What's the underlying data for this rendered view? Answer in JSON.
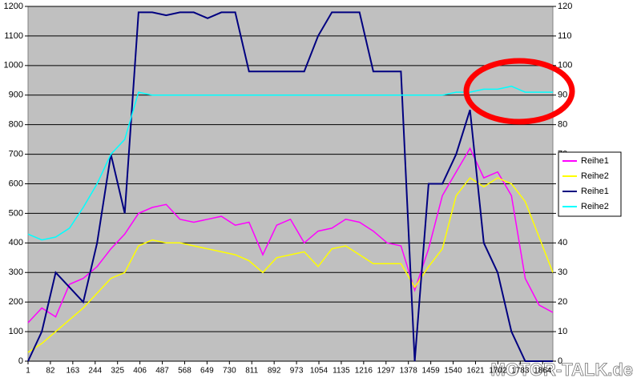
{
  "chart_data": {
    "type": "line",
    "x": [
      1,
      51,
      101,
      151,
      201,
      251,
      301,
      351,
      401,
      451,
      501,
      551,
      601,
      651,
      701,
      751,
      801,
      851,
      901,
      951,
      1001,
      1051,
      1101,
      1151,
      1201,
      1251,
      1301,
      1351,
      1401,
      1451,
      1501,
      1551,
      1601,
      1651,
      1701,
      1751,
      1801,
      1851,
      1901
    ],
    "series": [
      {
        "name": "Reihe1",
        "color": "#ff00ff",
        "axis": "y",
        "values": [
          130,
          180,
          150,
          260,
          280,
          320,
          380,
          430,
          500,
          520,
          530,
          480,
          470,
          480,
          490,
          460,
          470,
          360,
          460,
          480,
          400,
          440,
          450,
          480,
          470,
          440,
          400,
          390,
          240,
          380,
          560,
          640,
          720,
          620,
          640,
          560,
          280,
          190,
          165
        ]
      },
      {
        "name": "Reihe2",
        "color": "#ffff00",
        "axis": "y",
        "values": [
          30,
          60,
          100,
          140,
          180,
          230,
          280,
          300,
          390,
          410,
          400,
          400,
          390,
          380,
          370,
          360,
          340,
          300,
          350,
          360,
          370,
          320,
          380,
          390,
          360,
          330,
          330,
          330,
          250,
          320,
          380,
          560,
          620,
          590,
          620,
          600,
          540,
          420,
          300
        ]
      },
      {
        "name": "Reihe1",
        "color": "#000080",
        "axis": "y2",
        "values": [
          0,
          10,
          30,
          25,
          20,
          40,
          70,
          50,
          118,
          118,
          117,
          118,
          118,
          116,
          118,
          118,
          98,
          98,
          98,
          98,
          98,
          110,
          118,
          118,
          118,
          98,
          98,
          98,
          0,
          60,
          60,
          70,
          85,
          40,
          30,
          10,
          0,
          0,
          0
        ]
      },
      {
        "name": "Reihe2",
        "color": "#00ffff",
        "axis": "y2",
        "values": [
          43,
          41,
          42,
          45,
          52,
          60,
          70,
          75,
          91,
          90,
          90,
          90,
          90,
          90,
          90,
          90,
          90,
          90,
          90,
          90,
          90,
          90,
          90,
          90,
          90,
          90,
          90,
          90,
          90,
          90,
          90,
          91,
          91,
          92,
          92,
          93,
          91,
          91,
          91
        ]
      }
    ],
    "xlim": [
      1,
      1901
    ],
    "xticks": [
      1,
      82,
      163,
      244,
      325,
      406,
      487,
      568,
      649,
      730,
      811,
      892,
      973,
      1054,
      1135,
      1216,
      1297,
      1378,
      1459,
      1540,
      1621,
      1702,
      1783,
      1864
    ],
    "ylim": [
      0,
      1200
    ],
    "yticks": [
      0,
      100,
      200,
      300,
      400,
      500,
      600,
      700,
      800,
      900,
      1000,
      1100,
      1200
    ],
    "y2lim": [
      0,
      120
    ],
    "y2ticks": [
      0,
      10,
      20,
      30,
      40,
      50,
      60,
      70,
      80,
      90,
      100,
      110,
      120
    ],
    "grid": true,
    "legend": "right",
    "watermark": "MOTOR-TALK.de"
  }
}
